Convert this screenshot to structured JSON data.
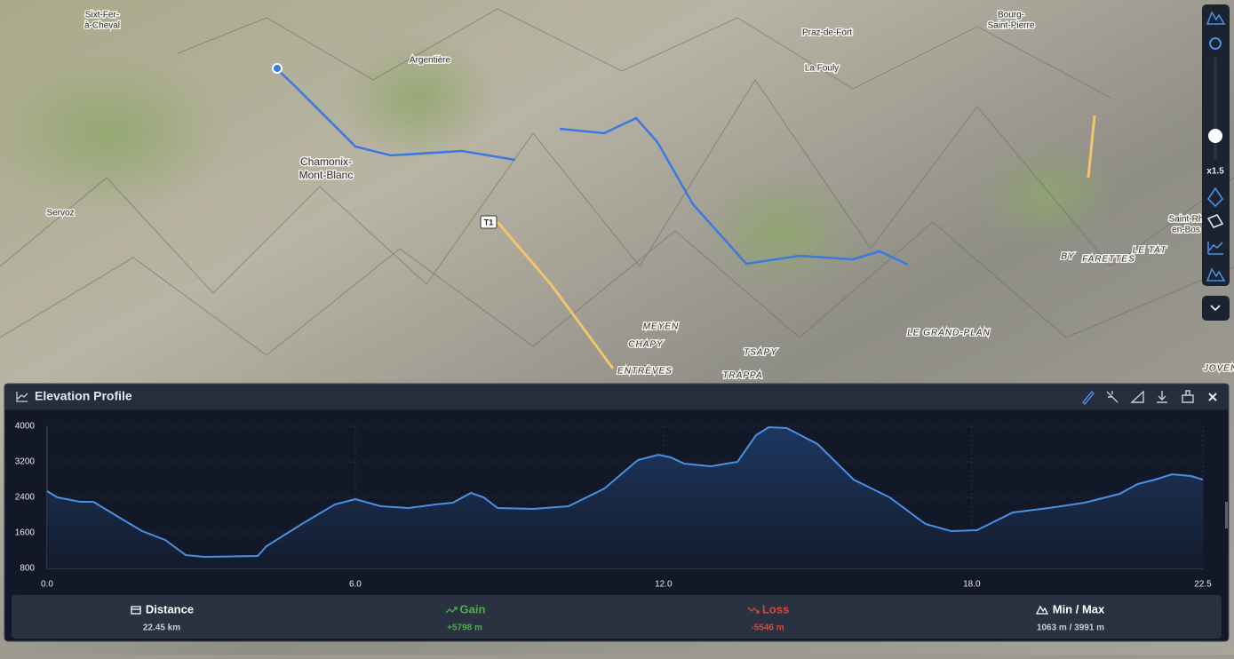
{
  "map": {
    "labels": [
      [
        "Sixt-Fer-",
        "à-Cheval"
      ],
      [
        "Argentière"
      ],
      [
        "Praz-de-Fort"
      ],
      [
        "Bourg-",
        "Saint-Pierre"
      ],
      [
        "La Fouly"
      ],
      [
        "Chamonix-",
        "Mont-Blanc"
      ],
      [
        "Servoz"
      ],
      [
        "T1"
      ],
      [
        "Saint-Rh",
        "en-Bos"
      ],
      [
        "BY"
      ],
      [
        "FARETTES"
      ],
      [
        "LE TAT"
      ],
      [
        "MEYEN"
      ],
      [
        "CHAPY"
      ],
      [
        "TSAPY"
      ],
      [
        "LE GRAND-PLAN"
      ],
      [
        "ENTRÈVES"
      ],
      [
        "TRAPPA"
      ],
      [
        "JOVEN"
      ]
    ]
  },
  "toolbar": {
    "exaggeration": "x1.5"
  },
  "panel": {
    "title": "Elevation Profile",
    "stats": [
      {
        "label": "Distance",
        "value": "22.45 km"
      },
      {
        "label": "Gain",
        "value": "+5798 m"
      },
      {
        "label": "Loss",
        "value": "-5546 m"
      },
      {
        "label": "Min / Max",
        "value": "1063 m / 3991 m"
      }
    ]
  },
  "chart_data": {
    "type": "area",
    "color": "#4a90e2",
    "grid": true,
    "x": [
      0,
      0.2,
      0.64,
      0.9,
      1.33,
      1.85,
      2.3,
      2.7,
      3.06,
      4.1,
      4.27,
      4.96,
      5.6,
      6.0,
      6.5,
      7.04,
      7.56,
      7.9,
      8.25,
      8.5,
      8.77,
      9.46,
      10.15,
      10.85,
      11.5,
      11.9,
      12.14,
      12.4,
      12.92,
      13.44,
      13.8,
      14.05,
      14.4,
      15.0,
      15.7,
      16.4,
      17.1,
      17.6,
      18.1,
      18.8,
      19.5,
      20.2,
      20.88,
      21.23,
      21.57,
      21.9,
      22.27,
      22.5
    ],
    "values": [
      2540,
      2400,
      2300,
      2300,
      2000,
      1640,
      1440,
      1100,
      1060,
      1080,
      1300,
      1800,
      2240,
      2360,
      2200,
      2160,
      2240,
      2280,
      2500,
      2400,
      2160,
      2140,
      2200,
      2600,
      3240,
      3360,
      3300,
      3160,
      3100,
      3200,
      3800,
      3980,
      3960,
      3600,
      2800,
      2400,
      1800,
      1640,
      1660,
      2060,
      2160,
      2280,
      2480,
      2700,
      2800,
      2920,
      2880,
      2800
    ],
    "xlim": [
      0,
      22.5
    ],
    "ylim": [
      800,
      4000
    ],
    "xticks": [
      {
        "value": 0,
        "label": "0.0"
      },
      {
        "value": 6,
        "label": "6.0"
      },
      {
        "value": 12,
        "label": "12.0"
      },
      {
        "value": 18,
        "label": "18.0"
      },
      22.5
    ],
    "yticks": [
      800,
      1600,
      2400,
      3200,
      4000
    ]
  }
}
